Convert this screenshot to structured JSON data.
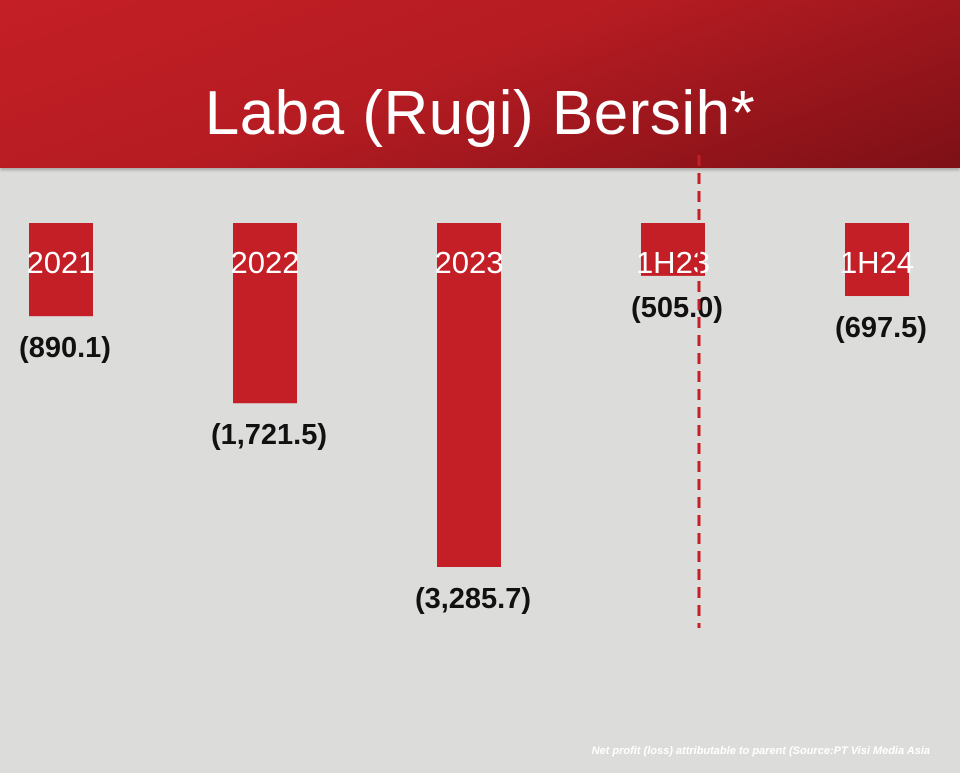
{
  "title": "Laba (Rugi) Bersih*",
  "footnote": "Net profit (loss) attributable to parent (Source:PT Visi Media Asia",
  "colors": {
    "bar": "#c41f26",
    "header": "#b51c22",
    "background": "#dcdcda",
    "divider": "#c41f26"
  },
  "chart_data": {
    "type": "bar",
    "title": "Laba (Rugi) Bersih*",
    "categories": [
      "2021",
      "2022",
      "2023",
      "1H23",
      "1H24"
    ],
    "values": [
      -890.1,
      -1721.5,
      -3285.7,
      -505.0,
      -697.5
    ],
    "value_labels": [
      "(890.1)",
      "(1,721.5)",
      "(3,285.7)",
      "(505.0)",
      "(697.5)"
    ],
    "bar_orientation": "downward from baseline",
    "divider": "dashed line between 2023 and 1H23/1H24 (annual vs half-year)",
    "grid": false,
    "legend": "none"
  }
}
